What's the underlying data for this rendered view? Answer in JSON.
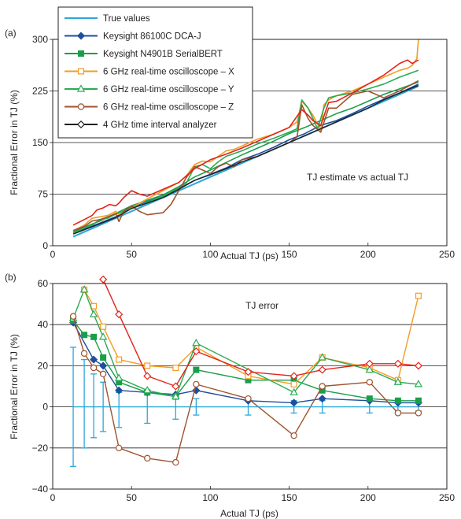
{
  "panel_labels": [
    "(a)",
    "(b)"
  ],
  "colors": {
    "true": "#2aa7d8",
    "keysight_dca": "#1f4e9c",
    "serialbert": "#1a9e4a",
    "osc_x": "#f39c22",
    "osc_y": "#2bab55",
    "osc_z": "#a0522d",
    "tia": "#231f20",
    "red": "#e2231a"
  },
  "legend": [
    {
      "name": "True values",
      "color": "#2aa7d8",
      "marker": "none"
    },
    {
      "name": "Keysight 86100C DCA-J",
      "color": "#1f4e9c",
      "marker": "diamond-filled"
    },
    {
      "name": "Keysight N4901B SerialBERT",
      "color": "#1a9e4a",
      "marker": "square-filled"
    },
    {
      "name": "6 GHz real-time oscilloscope – X",
      "color": "#f39c22",
      "marker": "square-open"
    },
    {
      "name": "6 GHz real-time oscilloscope – Y",
      "color": "#2bab55",
      "marker": "triangle-open"
    },
    {
      "name": "6 GHz real-time oscilloscope – Z",
      "color": "#a0522d",
      "marker": "circle-open"
    },
    {
      "name": "4 GHz time interval analyzer",
      "color": "#231f20",
      "marker": "diamond-open"
    }
  ],
  "chart_data": [
    {
      "type": "line",
      "annotation": "TJ estimate vs actual TJ",
      "xlabel": "Actual TJ (ps)",
      "ylabel": "Fractional Error in TJ (%)",
      "xlim": [
        0,
        250
      ],
      "ylim": [
        0,
        300
      ],
      "xticks": [
        0,
        50,
        100,
        150,
        200,
        250
      ],
      "yticks": [
        0,
        75,
        150,
        225,
        300
      ],
      "grid": "horizontal",
      "series": [
        {
          "key": "true",
          "color": "#2aa7d8",
          "width": 2,
          "x": [
            13,
            232
          ],
          "y": [
            13,
            232
          ]
        },
        {
          "key": "keysight_dca",
          "color": "#1f4e9c",
          "width": 1.6,
          "x": [
            13,
            20,
            30,
            40,
            50,
            60,
            70,
            80,
            90,
            100,
            110,
            120,
            130,
            140,
            150,
            160,
            170,
            180,
            190,
            200,
            210,
            220,
            232
          ],
          "y": [
            18,
            24,
            33,
            42,
            55,
            64,
            72,
            83,
            95,
            104,
            113,
            125,
            133,
            143,
            154,
            163,
            175,
            182,
            192,
            203,
            213,
            222,
            235
          ]
        },
        {
          "key": "serialbert",
          "color": "#1a9e4a",
          "width": 1.6,
          "x": [
            13,
            20,
            30,
            40,
            50,
            60,
            70,
            80,
            90,
            100,
            110,
            120,
            130,
            140,
            150,
            160,
            170,
            180,
            190,
            200,
            210,
            220,
            232
          ],
          "y": [
            20,
            27,
            36,
            47,
            58,
            66,
            74,
            86,
            100,
            110,
            121,
            132,
            142,
            152,
            163,
            172,
            182,
            192,
            200,
            210,
            220,
            228,
            238
          ]
        },
        {
          "key": "osc_x",
          "color": "#f39c22",
          "width": 1.6,
          "x": [
            13,
            20,
            25,
            30,
            35,
            40,
            42,
            46,
            50,
            55,
            60,
            70,
            80,
            85,
            90,
            95,
            100,
            105,
            110,
            115,
            120,
            130,
            140,
            150,
            155,
            158,
            162,
            165,
            170,
            172,
            175,
            180,
            190,
            200,
            210,
            220,
            225,
            228,
            231,
            232
          ],
          "y": [
            22,
            30,
            40,
            42,
            44,
            50,
            45,
            52,
            55,
            62,
            68,
            80,
            92,
            102,
            118,
            123,
            122,
            130,
            138,
            140,
            145,
            155,
            162,
            172,
            180,
            210,
            200,
            190,
            168,
            205,
            212,
            218,
            225,
            235,
            245,
            255,
            258,
            262,
            272,
            300
          ]
        },
        {
          "key": "osc_y",
          "color": "#2bab55",
          "width": 1.6,
          "x": [
            13,
            20,
            25,
            30,
            35,
            40,
            45,
            50,
            55,
            60,
            70,
            80,
            85,
            90,
            95,
            100,
            105,
            110,
            120,
            130,
            140,
            150,
            155,
            158,
            162,
            165,
            168,
            172,
            175,
            180,
            190,
            200,
            210,
            220,
            232
          ],
          "y": [
            18,
            26,
            30,
            38,
            40,
            46,
            50,
            56,
            58,
            63,
            72,
            84,
            92,
            115,
            118,
            112,
            122,
            130,
            138,
            148,
            156,
            165,
            170,
            212,
            200,
            185,
            170,
            200,
            215,
            218,
            222,
            228,
            235,
            245,
            255
          ]
        },
        {
          "key": "osc_z",
          "color": "#a0522d",
          "width": 1.6,
          "x": [
            13,
            20,
            25,
            30,
            35,
            40,
            42,
            45,
            50,
            55,
            60,
            70,
            75,
            80,
            85,
            90,
            95,
            100,
            105,
            110,
            115,
            120,
            130,
            140,
            150,
            155,
            158,
            162,
            165,
            170,
            175,
            180,
            190,
            200,
            210,
            220,
            232
          ],
          "y": [
            22,
            28,
            36,
            38,
            42,
            47,
            35,
            50,
            58,
            50,
            45,
            48,
            60,
            80,
            100,
            115,
            110,
            105,
            115,
            120,
            115,
            125,
            130,
            140,
            150,
            158,
            205,
            185,
            175,
            165,
            200,
            200,
            220,
            225,
            215,
            225,
            240
          ]
        },
        {
          "key": "red",
          "color": "#e2231a",
          "width": 1.6,
          "x": [
            13,
            20,
            25,
            28,
            32,
            36,
            40,
            42,
            45,
            50,
            55,
            60,
            70,
            80,
            90,
            100,
            110,
            120,
            130,
            140,
            150,
            158,
            162,
            165,
            170,
            175,
            180,
            190,
            200,
            210,
            220,
            225,
            228,
            232
          ],
          "y": [
            30,
            38,
            44,
            52,
            55,
            60,
            58,
            62,
            70,
            80,
            75,
            72,
            82,
            92,
            112,
            125,
            133,
            142,
            152,
            162,
            172,
            198,
            190,
            182,
            175,
            208,
            210,
            222,
            235,
            248,
            265,
            270,
            265,
            270
          ]
        },
        {
          "key": "tia",
          "color": "#231f20",
          "width": 1.4,
          "x": [
            13,
            20,
            30,
            40,
            50,
            60,
            70,
            80,
            90,
            100,
            110,
            120,
            130,
            140,
            150,
            160,
            170,
            180,
            190,
            200,
            210,
            220,
            232
          ],
          "y": [
            17,
            23,
            32,
            41,
            54,
            62,
            70,
            82,
            95,
            103,
            112,
            122,
            130,
            140,
            150,
            160,
            170,
            180,
            190,
            200,
            212,
            222,
            233
          ]
        }
      ]
    },
    {
      "type": "line",
      "annotation": "TJ error",
      "xlabel": "Actual TJ (ps)",
      "ylabel": "Fractional Error in TJ (%)",
      "xlim": [
        0,
        250
      ],
      "ylim": [
        -40,
        60
      ],
      "xticks": [
        0,
        50,
        100,
        150,
        200,
        250
      ],
      "yticks": [
        -40,
        -20,
        0,
        20,
        40,
        60
      ],
      "grid": "horizontal",
      "true_errorbars": {
        "color": "#2aa7d8",
        "x": [
          13,
          20,
          26,
          32,
          42,
          60,
          78,
          91,
          124,
          153,
          171,
          201,
          219,
          232
        ],
        "high": [
          29,
          23,
          16,
          12,
          7,
          8,
          6,
          4,
          4,
          3,
          3,
          3,
          2,
          2
        ],
        "low": [
          -29,
          -20,
          -15,
          -12,
          -10,
          -8,
          -6,
          -4,
          -4,
          -3,
          -3,
          -3,
          -2,
          -2
        ]
      },
      "series": [
        {
          "key": "keysight_dca",
          "color": "#1f4e9c",
          "marker": "diamond-filled",
          "x": [
            13,
            26,
            32,
            42,
            60,
            78,
            91,
            124,
            153,
            171,
            201,
            219,
            232
          ],
          "y": [
            41,
            23,
            20,
            8,
            7,
            6,
            8,
            3,
            2,
            4,
            3,
            2,
            2
          ]
        },
        {
          "key": "serialbert",
          "color": "#1a9e4a",
          "marker": "square-filled",
          "x": [
            13,
            20,
            26,
            32,
            42,
            60,
            78,
            91,
            124,
            153,
            171,
            201,
            219,
            232
          ],
          "y": [
            42,
            35,
            34,
            24,
            12,
            7,
            5,
            18,
            13,
            13,
            8,
            4,
            3,
            3
          ]
        },
        {
          "key": "osc_x",
          "color": "#f39c22",
          "marker": "square-open",
          "x": [
            20,
            26,
            32,
            42,
            60,
            78,
            91,
            124,
            153,
            171,
            201,
            219,
            232
          ],
          "y": [
            57,
            49,
            39,
            23,
            20,
            19,
            29,
            15,
            11,
            24,
            19,
            13,
            54
          ]
        },
        {
          "key": "osc_y",
          "color": "#2bab55",
          "marker": "triangle-open",
          "x": [
            13,
            20,
            26,
            32,
            42,
            60,
            78,
            91,
            153,
            171,
            201,
            219,
            232
          ],
          "y": [
            43,
            57,
            45,
            34,
            14,
            8,
            5,
            31,
            7,
            24,
            18,
            12,
            11
          ]
        },
        {
          "key": "osc_z",
          "color": "#a0522d",
          "marker": "circle-open",
          "x": [
            13,
            20,
            26,
            32,
            42,
            60,
            78,
            91,
            124,
            153,
            171,
            201,
            219,
            232
          ],
          "y": [
            44,
            26,
            19,
            16,
            -20,
            -25,
            -27,
            11,
            4,
            -14,
            10,
            12,
            -3,
            -3
          ]
        },
        {
          "key": "red",
          "color": "#e2231a",
          "marker": "diamond-open",
          "x": [
            32,
            42,
            60,
            78,
            91,
            124,
            153,
            171,
            201,
            219,
            232
          ],
          "y": [
            62,
            45,
            15,
            10,
            27,
            17,
            15,
            18,
            21,
            21,
            20
          ]
        },
        {
          "key": "true",
          "color": "#2aa7d8",
          "marker": "none",
          "x": [
            13,
            232
          ],
          "y": [
            0,
            0
          ]
        }
      ]
    }
  ]
}
